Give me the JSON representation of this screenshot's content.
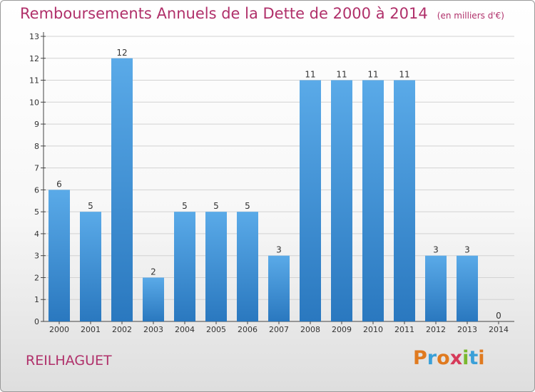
{
  "chart_data": {
    "type": "bar",
    "title": "Remboursements Annuels de la Dette de 2000 à 2014",
    "subtitle": "(en milliers d'€)",
    "categories": [
      "2000",
      "2001",
      "2002",
      "2003",
      "2004",
      "2005",
      "2006",
      "2007",
      "2008",
      "2009",
      "2010",
      "2011",
      "2012",
      "2013",
      "2014"
    ],
    "values": [
      6,
      5,
      12,
      2,
      5,
      5,
      5,
      3,
      11,
      11,
      11,
      11,
      3,
      3,
      0
    ],
    "data_labels": [
      "6",
      "5",
      "12",
      "2",
      "5",
      "5",
      "5",
      "3",
      "11",
      "11",
      "11",
      "11",
      "3",
      "3",
      "0"
    ],
    "ylim": [
      0,
      13
    ],
    "yticks": [
      0,
      1,
      2,
      3,
      4,
      5,
      6,
      7,
      8,
      9,
      10,
      11,
      12,
      13
    ],
    "grid": true,
    "bar_color_top": "#5aaae8",
    "bar_color_bottom": "#2a78bf"
  },
  "footer": {
    "commune": "REILHAGUET",
    "brand": "Proxiti",
    "brand_colors": [
      "#e07a1f",
      "#3aa0d8",
      "#e07a1f",
      "#d63a5a",
      "#7ab82e",
      "#3aa0d8",
      "#e07a1f"
    ]
  },
  "colors": {
    "title": "#b0306a",
    "grid": "#d2d2d2",
    "axis": "#444444"
  }
}
